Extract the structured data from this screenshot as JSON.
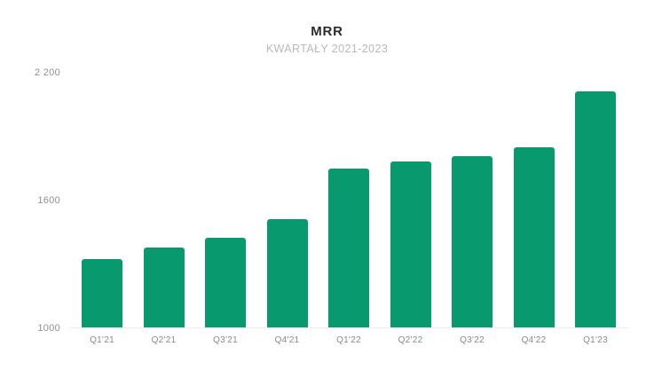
{
  "page": {
    "background": "#ffffff"
  },
  "chart_data": {
    "type": "bar",
    "title": "MRR",
    "subtitle": "KWARTAŁY 2021-2023",
    "categories": [
      "Q1'21",
      "Q2'21",
      "Q3'21",
      "Q4'21",
      "Q1'22",
      "Q2'22",
      "Q3'22",
      "Q4'22",
      "Q1'23"
    ],
    "values": [
      1320,
      1375,
      1420,
      1510,
      1745,
      1780,
      1805,
      1845,
      2110
    ],
    "y_ticks": [
      {
        "label": "2 200",
        "value": 2200
      },
      {
        "label": "1600",
        "value": 1600
      },
      {
        "label": "1000",
        "value": 1000
      }
    ],
    "ylim": [
      1000,
      2200
    ],
    "xlabel": "",
    "ylabel": "",
    "grid": false,
    "legend": false,
    "bar_color": "#089a6e",
    "baseline_color": "#ececec",
    "title_color": "#2b2b2b",
    "subtitle_color": "#b9b9b9",
    "ytick_color": "#8f8f8f",
    "xtick_color": "#8a8a8a"
  }
}
